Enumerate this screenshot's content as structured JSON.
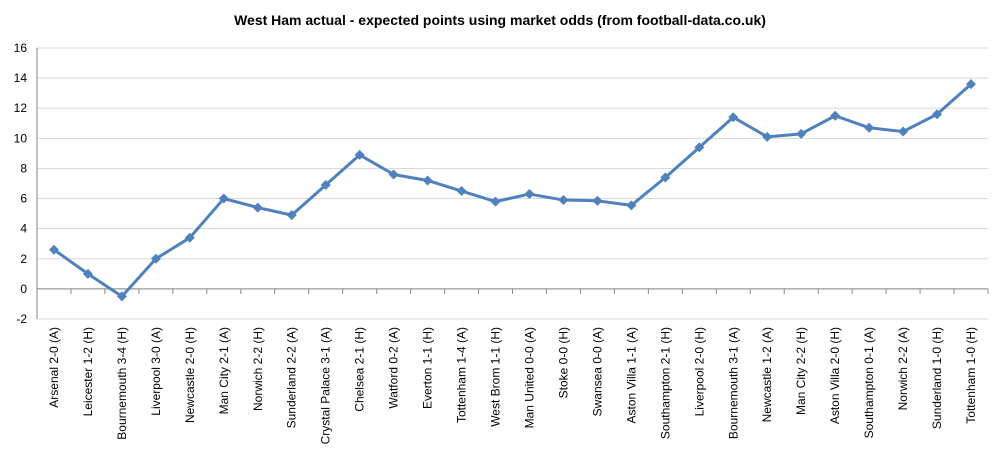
{
  "chart_data": {
    "type": "line",
    "title": "West Ham actual - expected points using market odds (from football-data.co.uk)",
    "xlabel": "",
    "ylabel": "",
    "ylim": [
      -2,
      16
    ],
    "yticks": [
      -2,
      0,
      2,
      4,
      6,
      8,
      10,
      12,
      14,
      16
    ],
    "grid": true,
    "legend": "none",
    "categories": [
      "Arsenal 2-0 (A)",
      "Leicester 1-2 (H)",
      "Bournemouth 3-4 (H)",
      "Liverpool 3-0 (A)",
      "Newcastle 2-0 (H)",
      "Man City 2-1 (A)",
      "Norwich 2-2 (H)",
      "Sunderland 2-2 (A)",
      "Crystal Palace 3-1 (A)",
      "Chelsea 2-1 (H)",
      "Watford 0-2 (A)",
      "Everton 1-1 (H)",
      "Tottenham 1-4 (A)",
      "West Brom 1-1 (H)",
      "Man United 0-0 (A)",
      "Stoke 0-0 (H)",
      "Swansea 0-0 (A)",
      "Aston Villa 1-1 (A)",
      "Southampton 2-1 (H)",
      "Liverpool 2-0 (H)",
      "Bournemouth 3-1 (A)",
      "Newcastle 1-2 (A)",
      "Man City 2-2 (H)",
      "Aston Villa 2-0 (H)",
      "Southampton 0-1 (A)",
      "Norwich 2-2 (A)",
      "Sunderland 1-0 (H)",
      "Tottenham 1-0 (H)"
    ],
    "series": [
      {
        "values": [
          2.6,
          1.0,
          -0.5,
          2.0,
          3.4,
          6.0,
          5.4,
          4.9,
          6.9,
          8.9,
          7.6,
          7.2,
          6.5,
          5.8,
          6.3,
          5.9,
          5.85,
          5.55,
          7.4,
          9.4,
          11.4,
          10.1,
          10.3,
          11.5,
          10.7,
          10.45,
          11.6,
          13.6
        ],
        "color": "#4f81bd"
      }
    ],
    "colors": {
      "grid": "#d9d9d9",
      "axis": "#868686"
    }
  }
}
